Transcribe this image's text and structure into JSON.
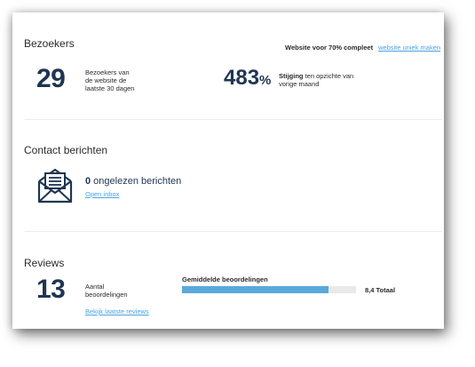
{
  "visitors": {
    "title": "Bezoekers",
    "count": "29",
    "count_desc_1": "Bezoekers van",
    "count_desc_2": "de website de",
    "count_desc_3": "laatste 30 dagen",
    "complete_label": "Website voor 70% compleet",
    "unique_link": "website uniek maken",
    "growth_value": "483",
    "growth_unit": "%",
    "growth_word": "Stijging",
    "growth_desc_1": " ten opzichte van",
    "growth_desc_2": "vorige maand"
  },
  "messages": {
    "title": "Contact berichten",
    "unread_count": "0",
    "unread_label": " ongelezen berichten",
    "inbox_link": "Open inbox",
    "icon": "envelope-icon"
  },
  "reviews": {
    "title": "Reviews",
    "count": "13",
    "count_desc_1": "Aantal",
    "count_desc_2": "beoordelingen",
    "avg_label": "Gemiddelde beoordelingen",
    "avg_fraction": 0.84,
    "avg_total": "8,4 Totaal",
    "view_link": "Bekijk laatste reviews"
  },
  "colors": {
    "accent": "#4aa3df",
    "number": "#1f3552",
    "bar_fill": "#5aa9dc",
    "bar_track": "#e9e9e9"
  }
}
